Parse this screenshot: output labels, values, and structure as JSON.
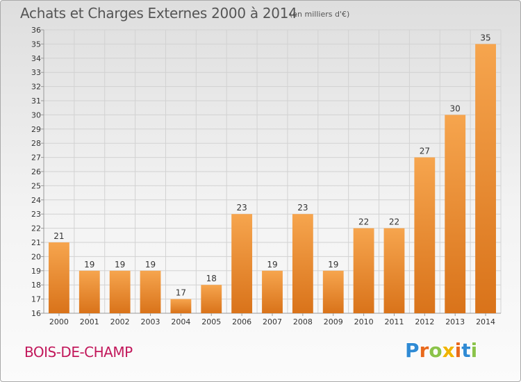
{
  "header": {
    "title": "Achats et Charges Externes 2000 à 2014",
    "subtitle": "(en milliers d'€)"
  },
  "footer": {
    "commune": "BOIS-DE-CHAMP",
    "logo_letters": [
      "P",
      "r",
      "o",
      "x",
      "i",
      "t",
      "i"
    ]
  },
  "colors": {
    "bar_top": "#f6a54e",
    "bar_bottom": "#d9731a",
    "commune": "#c2185b",
    "logo": [
      "#2f8ad4",
      "#e8691c",
      "#8bc34a",
      "#f0b400",
      "#e8691c",
      "#2f8ad4",
      "#8bc34a"
    ]
  },
  "chart_data": {
    "type": "bar",
    "title": "Achats et Charges Externes 2000 à 2014",
    "subtitle": "(en milliers d'€)",
    "categories": [
      "2000",
      "2001",
      "2002",
      "2003",
      "2004",
      "2005",
      "2006",
      "2007",
      "2008",
      "2009",
      "2010",
      "2011",
      "2012",
      "2013",
      "2014"
    ],
    "values": [
      21,
      19,
      19,
      19,
      17,
      18,
      23,
      19,
      23,
      19,
      22,
      22,
      27,
      30,
      35
    ],
    "ylim": [
      16,
      36
    ],
    "yticks": [
      16,
      17,
      18,
      19,
      20,
      21,
      22,
      23,
      24,
      25,
      26,
      27,
      28,
      29,
      30,
      31,
      32,
      33,
      34,
      35,
      36
    ],
    "grid": true,
    "legend": "none"
  }
}
